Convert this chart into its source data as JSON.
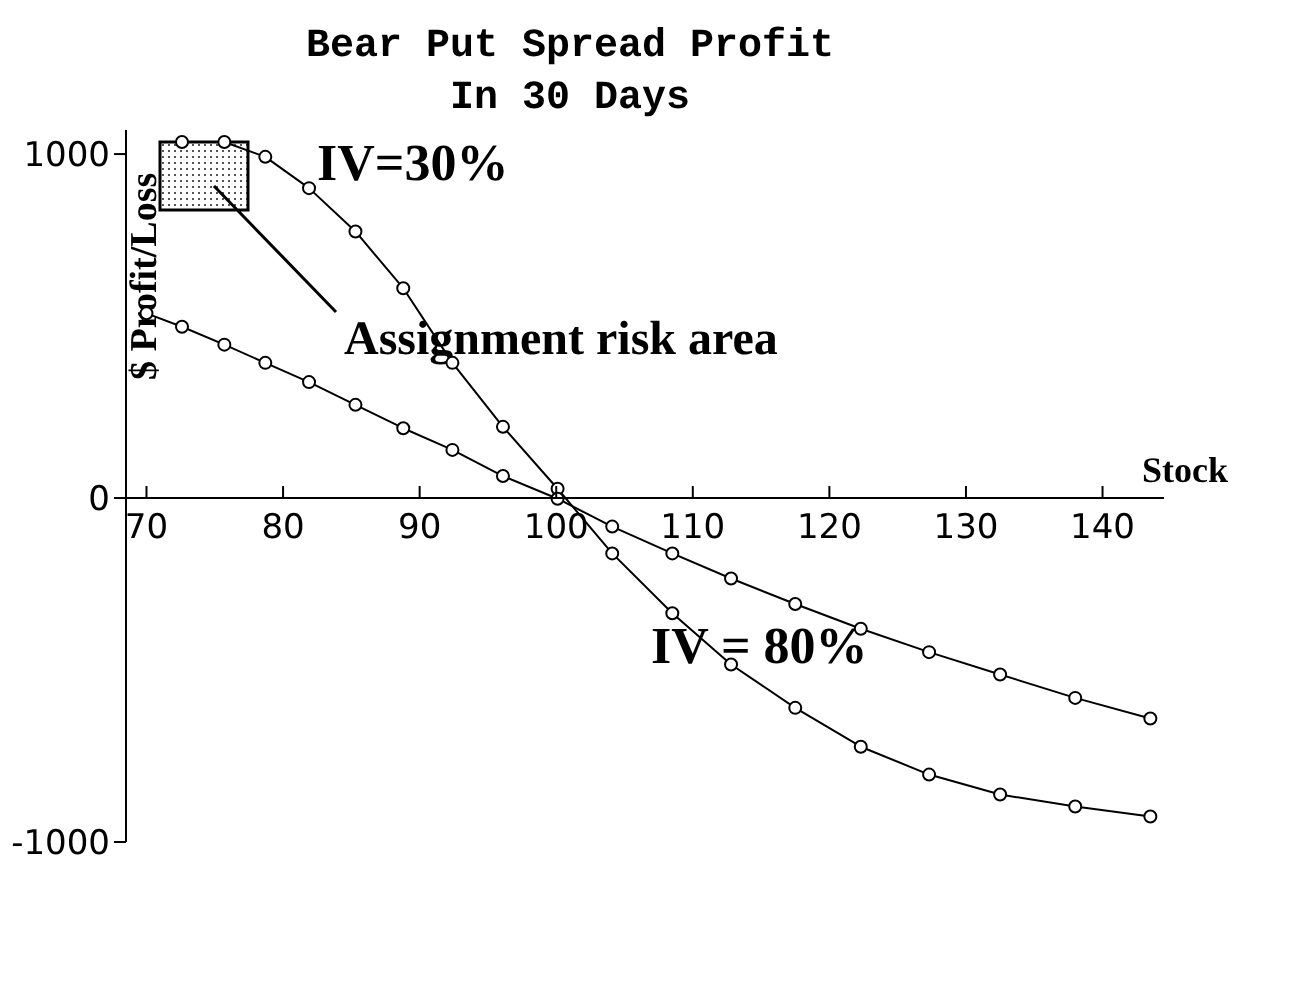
{
  "chart_data": {
    "type": "line",
    "title": "Bear Put Spread Profit\nIn 30 Days",
    "xlabel": "Stock",
    "ylabel": "$ Profit/Loss",
    "x": [
      70,
      72.6,
      75.7,
      78.7,
      81.9,
      85.3,
      88.8,
      92.4,
      96.1,
      100.1,
      104.1,
      108.5,
      112.8,
      117.5,
      122.3,
      127.3,
      132.5,
      138.0,
      143.5
    ],
    "series": [
      {
        "name": "IV=30%",
        "color": "#000000",
        "values": [
          null,
          1035,
          1035,
          992,
          901,
          775,
          610,
          393,
          207,
          27,
          -161,
          -335,
          -484,
          -610,
          -723,
          -804,
          -862,
          -897,
          -926
        ]
      },
      {
        "name": "IV = 80%",
        "color": "#000000",
        "values": [
          537,
          498,
          446,
          393,
          337,
          271,
          203,
          140,
          64,
          -2,
          -83,
          -161,
          -234,
          -308,
          -380,
          -448,
          -513,
          -581,
          -641
        ]
      }
    ],
    "xlim": [
      68.5,
      144.5
    ],
    "xticks": [
      70,
      80,
      90,
      100,
      110,
      120,
      130,
      140
    ],
    "ylim": [
      -1000,
      1070
    ],
    "yticks": [
      -1000,
      0,
      1000
    ],
    "annotations": [
      "Assignment risk area"
    ],
    "grid": false,
    "legend": false,
    "marker": "circle",
    "line_style": "solid"
  }
}
